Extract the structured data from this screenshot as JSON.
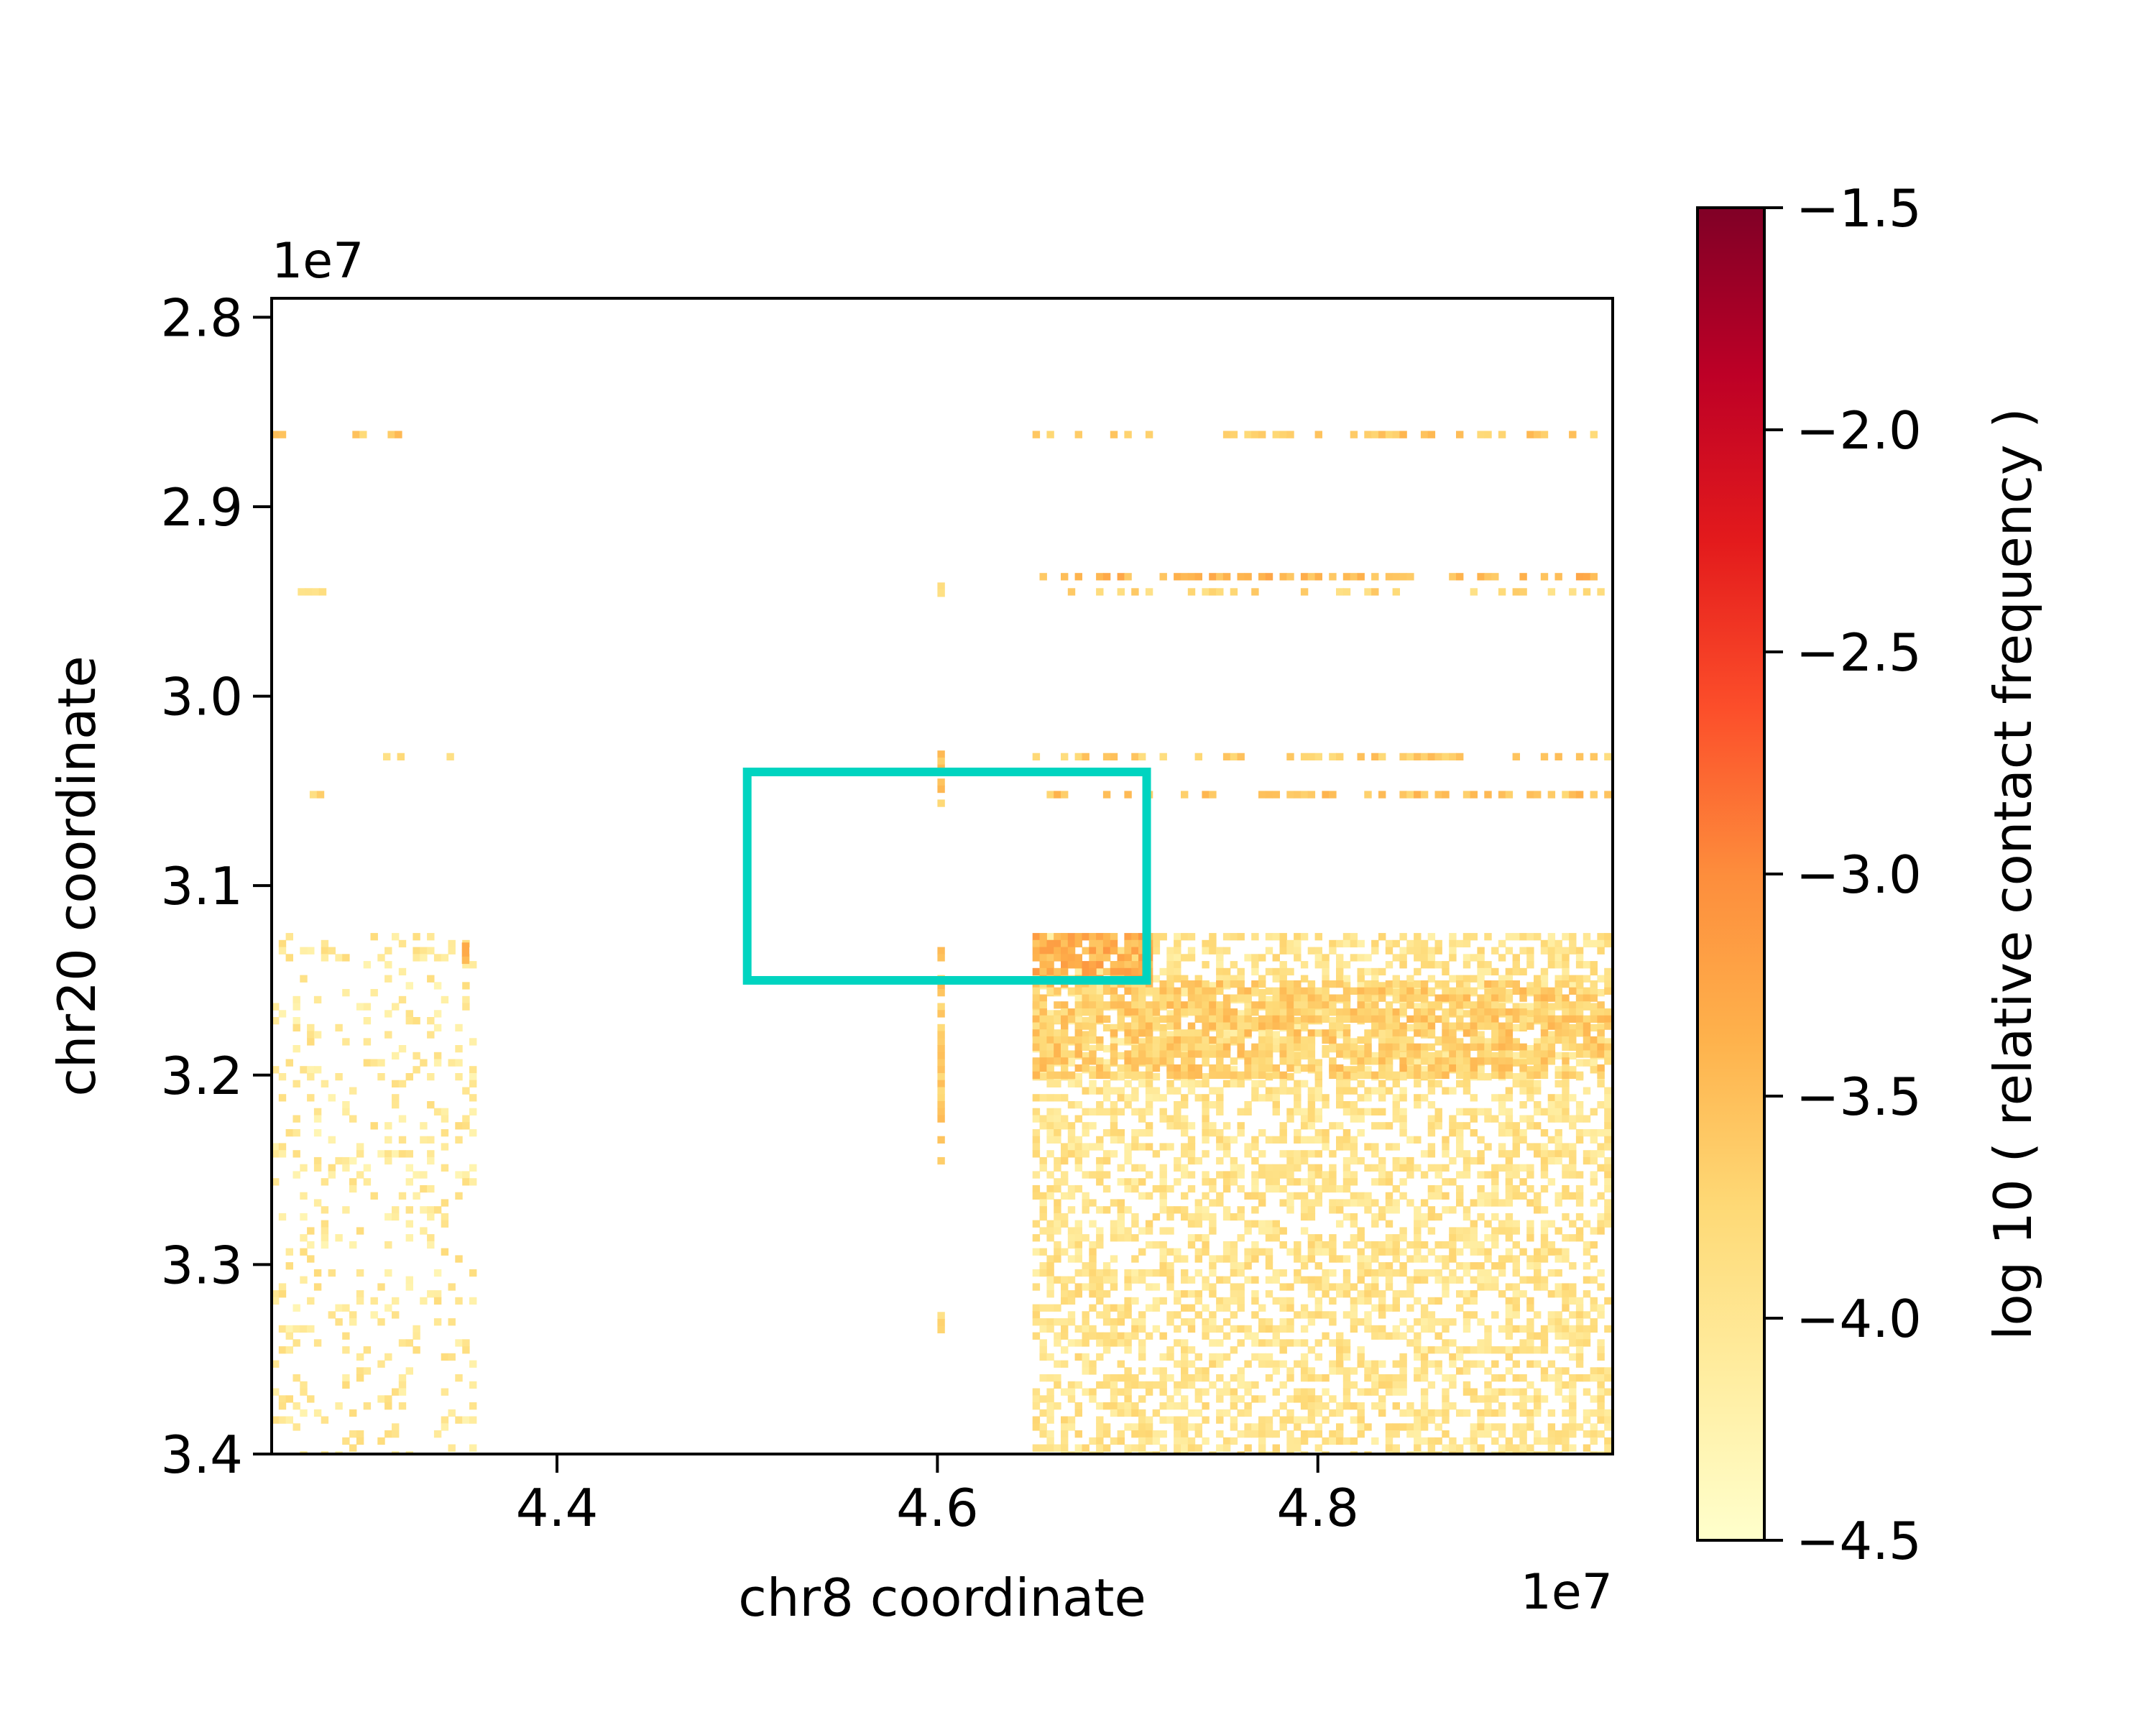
{
  "chart_data": {
    "type": "heatmap",
    "title": "",
    "xlabel": "chr8 coordinate",
    "ylabel": "chr20 coordinate",
    "x_offset_label": "1e7",
    "y_offset_label": "1e7",
    "xlim": [
      4.25,
      4.955
    ],
    "ylim": [
      3.4,
      2.79
    ],
    "x_ticks": [
      {
        "value": 4.4,
        "label": "4.4"
      },
      {
        "value": 4.6,
        "label": "4.6"
      },
      {
        "value": 4.8,
        "label": "4.8"
      }
    ],
    "y_ticks": [
      {
        "value": 2.8,
        "label": "2.8"
      },
      {
        "value": 2.9,
        "label": "2.9"
      },
      {
        "value": 3.0,
        "label": "3.0"
      },
      {
        "value": 3.1,
        "label": "3.1"
      },
      {
        "value": 3.2,
        "label": "3.2"
      },
      {
        "value": 3.3,
        "label": "3.3"
      },
      {
        "value": 3.4,
        "label": "3.4"
      }
    ],
    "colorbar": {
      "label": "log 10 ( relative contact frequency )",
      "colormap": "YlOrRd",
      "range": [
        -4.5,
        -1.5
      ],
      "ticks": [
        {
          "value": -1.5,
          "label": "−1.5"
        },
        {
          "value": -2.0,
          "label": "−2.0"
        },
        {
          "value": -2.5,
          "label": "−2.5"
        },
        {
          "value": -3.0,
          "label": "−3.0"
        },
        {
          "value": -3.5,
          "label": "−3.5"
        },
        {
          "value": -4.0,
          "label": "−4.0"
        },
        {
          "value": -4.5,
          "label": "−4.5"
        }
      ],
      "stops": [
        "#ffffcc",
        "#ffeda0",
        "#fed976",
        "#feb24c",
        "#fd8d3c",
        "#fc4e2a",
        "#e31a1c",
        "#bd0026",
        "#800026"
      ]
    },
    "highlight_box": {
      "x": [
        4.5,
        4.71
      ],
      "y": [
        3.04,
        3.15
      ],
      "color": "#00d4c0"
    },
    "regions": [
      {
        "x": [
          4.25,
          4.355
        ],
        "y": [
          3.125,
          3.4
        ],
        "density": 0.17,
        "mean": -4.05
      },
      {
        "x": [
          4.65,
          4.955
        ],
        "y": [
          3.125,
          3.4
        ],
        "density": 0.5,
        "mean": -3.95
      },
      {
        "x": [
          4.65,
          4.71
        ],
        "y": [
          3.125,
          3.15
        ],
        "density": 0.85,
        "mean": -3.35
      },
      {
        "x": [
          4.65,
          4.955
        ],
        "y": [
          3.15,
          3.2
        ],
        "density": 0.7,
        "mean": -3.65
      }
    ],
    "row_stripes": [
      {
        "y": 2.86,
        "x": [
          4.65,
          4.955
        ],
        "density": 0.45,
        "mean": -3.6
      },
      {
        "y": 2.86,
        "x": [
          4.285,
          4.325
        ],
        "density": 0.55,
        "mean": -3.6
      },
      {
        "y": 2.86,
        "x": [
          4.25,
          4.255
        ],
        "density": 1.0,
        "mean": -3.6
      },
      {
        "y": 2.935,
        "x": [
          4.65,
          4.955
        ],
        "density": 0.45,
        "mean": -3.45
      },
      {
        "y": 2.943,
        "x": [
          4.65,
          4.955
        ],
        "density": 0.35,
        "mean": -3.75
      },
      {
        "y": 2.943,
        "x": [
          4.26,
          4.28
        ],
        "density": 0.4,
        "mean": -3.8
      },
      {
        "y": 3.03,
        "x": [
          4.65,
          4.955
        ],
        "density": 0.4,
        "mean": -3.65
      },
      {
        "y": 3.03,
        "x": [
          4.29,
          4.355
        ],
        "density": 0.2,
        "mean": -3.75
      },
      {
        "y": 3.05,
        "x": [
          4.65,
          4.955
        ],
        "density": 0.5,
        "mean": -3.55
      },
      {
        "y": 3.05,
        "x": [
          4.27,
          4.275
        ],
        "density": 1.0,
        "mean": -3.7
      }
    ],
    "column_stripes": [
      {
        "x": 4.6,
        "y": [
          3.125,
          3.25
        ],
        "density": 0.45,
        "mean": -3.6
      },
      {
        "x": 4.6,
        "y": [
          3.025,
          3.055
        ],
        "density": 0.6,
        "mean": -3.6
      },
      {
        "x": 4.6,
        "y": [
          3.325,
          3.335
        ],
        "density": 1.0,
        "mean": -3.8
      },
      {
        "x": 4.6,
        "y": [
          2.94,
          2.945
        ],
        "density": 1.0,
        "mean": -3.8
      },
      {
        "x": 4.35,
        "y": [
          3.13,
          3.14
        ],
        "density": 1.0,
        "mean": -3.3
      }
    ]
  }
}
